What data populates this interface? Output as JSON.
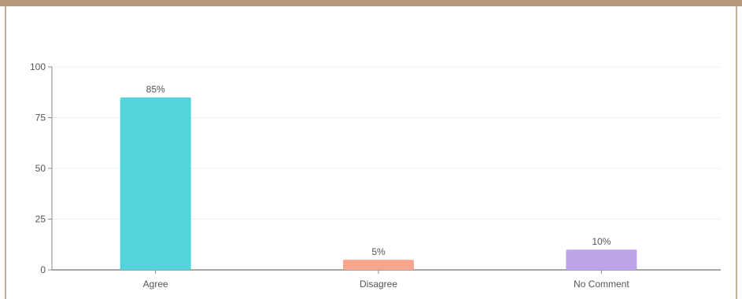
{
  "chart_data": {
    "type": "bar",
    "categories": [
      "Agree",
      "Disagree",
      "No Comment"
    ],
    "values": [
      85,
      5,
      10
    ],
    "data_labels": [
      "85%",
      "5%",
      "10%"
    ],
    "colors": [
      "#53d3da",
      "#f8a58d",
      "#bda3e8"
    ],
    "ylim": [
      0,
      100
    ],
    "yticks": [
      0,
      25,
      50,
      75,
      100
    ],
    "ytick_labels": [
      "0",
      "25",
      "50",
      "75",
      "100"
    ],
    "grid": true,
    "title": "",
    "xlabel": "",
    "ylabel": ""
  },
  "theme": {
    "frame_color": "#b8977a",
    "grid_color": "#f0f0f0",
    "axis_color": "#888888"
  }
}
